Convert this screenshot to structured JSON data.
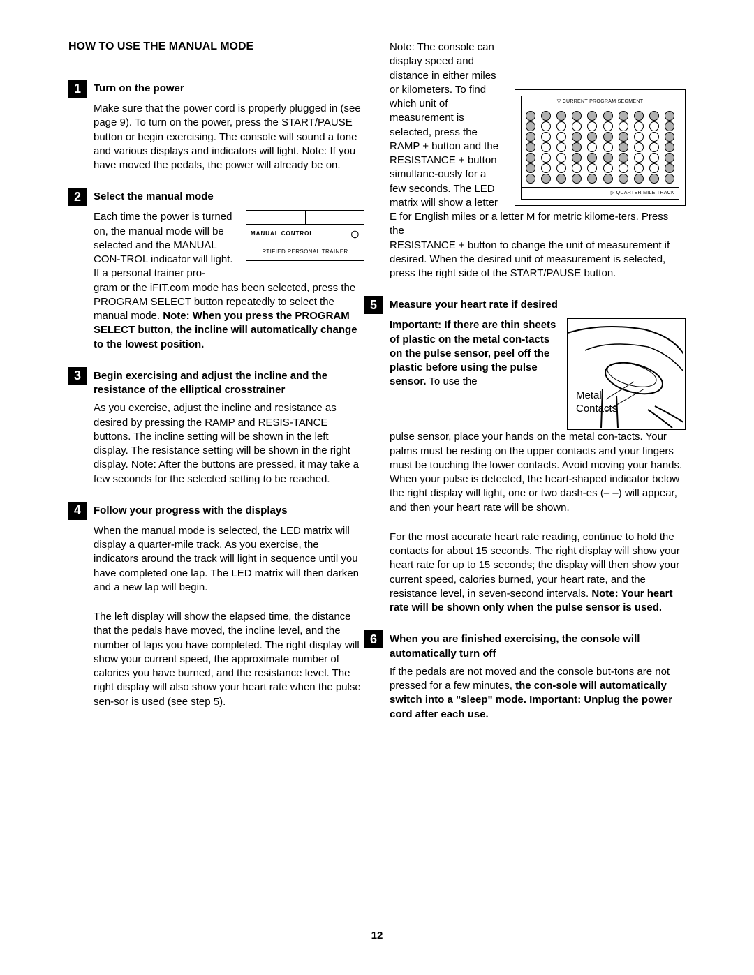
{
  "page_number": "12",
  "section_title": "HOW TO USE THE MANUAL MODE",
  "steps": {
    "s1": {
      "num": "1",
      "title": "Turn on the power",
      "body": "Make sure that the power cord is properly plugged in (see page 9). To turn on the power, press the START/PAUSE button or begin exercising. The console will sound a tone and various displays and indicators will light. Note: If you have moved the pedals, the power will already be on."
    },
    "s2": {
      "num": "2",
      "title": "Select the manual mode",
      "body_a": "Each time the power is turned on, the manual mode will be selected and the MANUAL CON-TROL indicator will light. If a personal trainer pro-",
      "body_b_pre": "gram or the iFIT.com mode has been selected, press the PROGRAM SELECT button repeatedly to select the manual mode. ",
      "body_b_bold": "Note: When you press the PROGRAM SELECT button, the incline will automatically change to the lowest position.",
      "diagram_mid": "MANUAL CONTROL",
      "diagram_bot": "RTIFIED PERSONAL TRAINER"
    },
    "s3": {
      "num": "3",
      "title": "Begin exercising and adjust the incline and the resistance of the elliptical crosstrainer",
      "body": "As you exercise, adjust the incline and resistance as desired by pressing the RAMP and RESIS-TANCE buttons. The incline setting will be shown in the left display. The resistance setting will be shown in the right display. Note: After the buttons are pressed, it may take a few seconds for the selected setting to be reached."
    },
    "s4": {
      "num": "4",
      "title": "Follow your progress with the displays",
      "body_a": "When the manual mode is selected, the LED matrix will display a quarter-mile track. As you exercise, the indicators around the track will light in sequence until you have completed one lap. The LED matrix will then darken and a new lap will begin.",
      "body_b": "The left display will show the elapsed time, the distance that the pedals have moved, the incline level, and the number of laps you have completed. The right display will show your current speed, the approximate number of calories you have burned, and the resistance level. The right display will also show your heart rate when the pulse sen-sor is used (see step 5).",
      "body_c_pre": "Note: The console can display speed and distance in either miles or kilometers. To find which unit of measurement is selected, press the RAMP + button and the RESISTANCE + button simultane-ously for a few seconds. The LED matrix will show a letter E for English miles or a letter M for metric kilome-ters. Press the",
      "body_c_post": "RESISTANCE + button to change the unit of measurement if desired. When the desired unit of measurement is selected, press the right side of the START/PAUSE button.",
      "led_header": "CURRENT PROGRAM SEGMENT",
      "led_footer": "QUARTER MILE TRACK"
    },
    "s5": {
      "num": "5",
      "title": "Measure your heart rate if desired",
      "body_a_bold": "Important: If there are thin sheets of plastic on the metal con-tacts on the pulse sensor, peel off the plastic before using the pulse sensor.",
      "body_a_post": " To use the",
      "body_b": "pulse sensor, place your hands on the metal con-tacts. Your palms must be resting on the upper contacts and your fingers must be touching the lower contacts. Avoid moving your hands. When your pulse is detected, the heart-shaped indicator below the right display will light, one or two dash-es (– –) will appear, and then your heart rate will be shown.",
      "body_c_pre": "For the most accurate heart rate reading, continue to hold the contacts for about 15 seconds. The right display will show your heart rate for up to 15 seconds; the display will then show your current speed, calories burned, your heart rate, and the resistance level, in seven-second intervals. ",
      "body_c_bold": "Note: Your heart rate will be shown only when the pulse sensor is used.",
      "label_metal": "Metal",
      "label_contacts": "Contacts"
    },
    "s6": {
      "num": "6",
      "title": "When you are finished exercising, the console will automatically turn off",
      "body_pre": "If the pedals are not moved and the console but-tons are not pressed for a few minutes, ",
      "body_bold": "the con-sole will automatically switch into a \"sleep\" mode. Important: Unplug the power cord after each use."
    }
  },
  "led_matrix": {
    "rows": 7,
    "cols": 10,
    "filled": [
      [
        0,
        1,
        2,
        3,
        4,
        5,
        6,
        7,
        8,
        9
      ],
      [
        0,
        9
      ],
      [
        0,
        3,
        4,
        5,
        6,
        9
      ],
      [
        0,
        3,
        6,
        9
      ],
      [
        0,
        3,
        4,
        5,
        6,
        9
      ],
      [
        0,
        9
      ],
      [
        0,
        1,
        2,
        3,
        4,
        5,
        6,
        7,
        8,
        9
      ]
    ]
  }
}
